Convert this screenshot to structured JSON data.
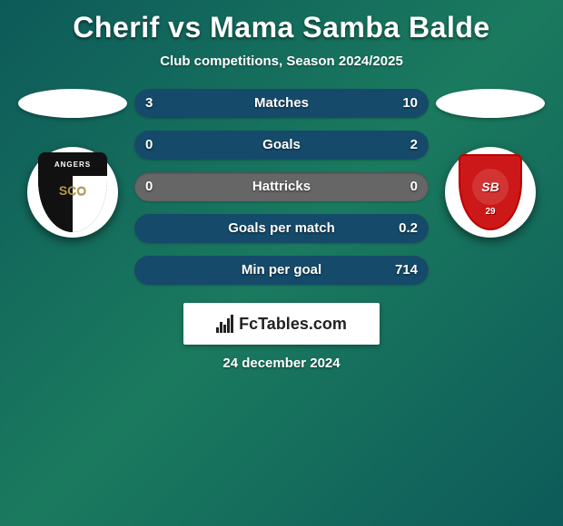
{
  "title": "Cherif vs Mama Samba Balde",
  "subtitle": "Club competitions, Season 2024/2025",
  "date": "24 december 2024",
  "watermark": "FcTables.com",
  "colors": {
    "bg_grad_a": "#0d5a5a",
    "bg_grad_b": "#1a7a5e",
    "bar_track": "#666666",
    "bar_fill": "#154a6a",
    "text": "#ffffff"
  },
  "left_badge": {
    "name": "angers-sco",
    "top_text": "ANGERS",
    "mid_text": "SCO"
  },
  "right_badge": {
    "name": "stade-brestois",
    "initials": "SB",
    "number": "29"
  },
  "stats": [
    {
      "label": "Matches",
      "left_val": "3",
      "right_val": "10",
      "left_pct": 23,
      "right_pct": 77
    },
    {
      "label": "Goals",
      "left_val": "0",
      "right_val": "2",
      "left_pct": 0,
      "right_pct": 100
    },
    {
      "label": "Hattricks",
      "left_val": "0",
      "right_val": "0",
      "left_pct": 0,
      "right_pct": 0
    },
    {
      "label": "Goals per match",
      "left_val": "",
      "right_val": "0.2",
      "left_pct": 0,
      "right_pct": 100
    },
    {
      "label": "Min per goal",
      "left_val": "",
      "right_val": "714",
      "left_pct": 0,
      "right_pct": 100
    }
  ]
}
